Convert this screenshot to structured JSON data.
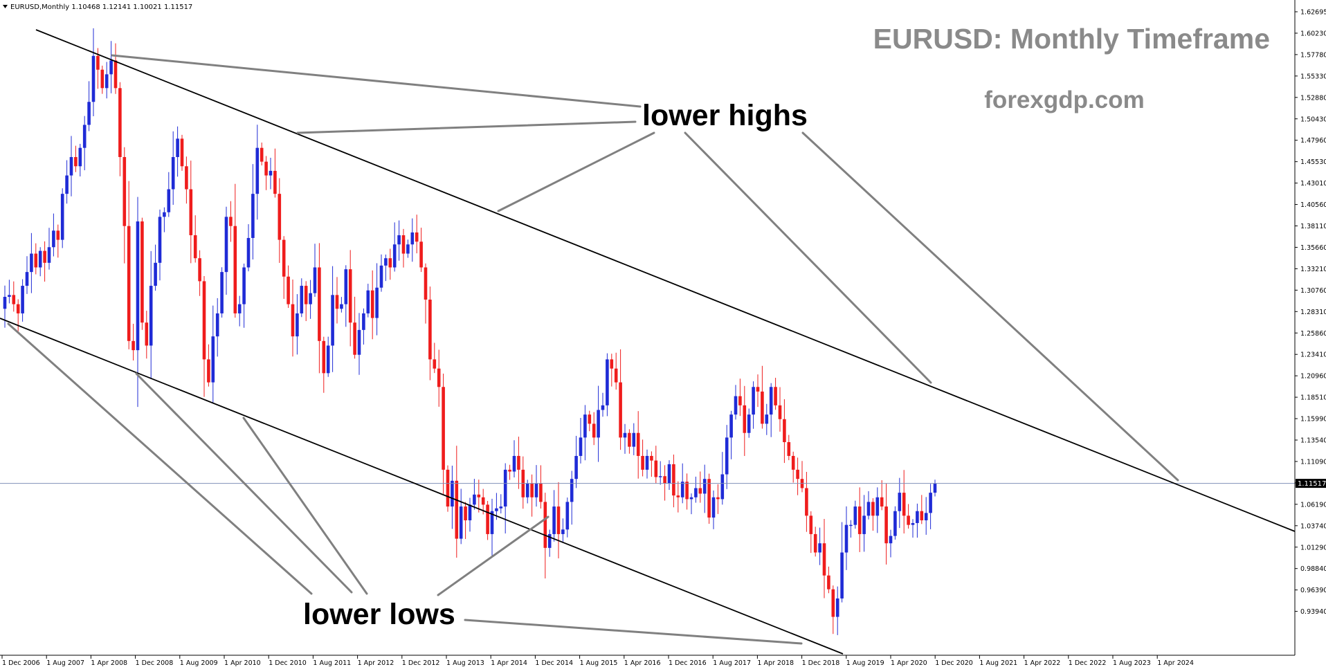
{
  "header": {
    "triangle_icon": "triangle-down-icon",
    "info": "EURUSD,Monthly  1.10468 1.12141 1.10021 1.11517"
  },
  "overlay": {
    "title": "EURUSD: Monthly Timeframe",
    "site": "forexgdp.com",
    "label_highs": "lower highs",
    "label_lows": "lower lows"
  },
  "colors": {
    "bull": "#1f2bd6",
    "bear": "#ef1c1c",
    "title_gray": "#8a8a8a",
    "annotation_line": "#808080",
    "trend_line": "#000000",
    "price_line": "#7f8fb8",
    "axis": "#000000"
  },
  "chart_data": {
    "type": "candlestick",
    "symbol": "EURUSD",
    "timeframe": "Monthly",
    "ylim": [
      0.9373,
      1.6295
    ],
    "y_ticks": [
      "1.62695",
      "1.60230",
      "1.57780",
      "1.55330",
      "1.52880",
      "1.50430",
      "1.47960",
      "1.45530",
      "1.43010",
      "1.40560",
      "1.38110",
      "1.35660",
      "1.33210",
      "1.30760",
      "1.28310",
      "1.25860",
      "1.23410",
      "1.20960",
      "1.18510",
      "1.15990",
      "1.13540",
      "1.11090",
      "1.08640",
      "1.06190",
      "1.03740",
      "1.01290",
      "0.98840",
      "0.96390",
      "0.93940"
    ],
    "x_ticks": [
      "1 Dec 2006",
      "1 Aug 2007",
      "1 Apr 2008",
      "1 Dec 2008",
      "1 Aug 2009",
      "1 Apr 2010",
      "1 Dec 2010",
      "1 Aug 2011",
      "1 Apr 2012",
      "1 Dec 2012",
      "1 Aug 2013",
      "1 Apr 2014",
      "1 Dec 2014",
      "1 Aug 2015",
      "1 Apr 2016",
      "1 Dec 2016",
      "1 Aug 2017",
      "1 Apr 2018",
      "1 Dec 2018",
      "1 Aug 2019",
      "1 Apr 2020",
      "1 Dec 2020",
      "1 Aug 2021",
      "1 Apr 2022",
      "1 Dec 2022",
      "1 Aug 2023",
      "1 Apr 2024"
    ],
    "current_price": "1.11517",
    "current_price_value": 1.11517,
    "candle_start": "2006-10",
    "closes": [
      1.318,
      1.32,
      1.31,
      1.3,
      1.33,
      1.345,
      1.365,
      1.35,
      1.368,
      1.355,
      1.372,
      1.39,
      1.38,
      1.43,
      1.45,
      1.47,
      1.46,
      1.48,
      1.505,
      1.53,
      1.58,
      1.565,
      1.545,
      1.56,
      1.575,
      1.545,
      1.47,
      1.395,
      1.27,
      1.26,
      1.4,
      1.29,
      1.265,
      1.33,
      1.355,
      1.405,
      1.41,
      1.435,
      1.47,
      1.49,
      1.46,
      1.435,
      1.385,
      1.36,
      1.335,
      1.25,
      1.225,
      1.275,
      1.3,
      1.345,
      1.405,
      1.395,
      1.3,
      1.31,
      1.35,
      1.382,
      1.43,
      1.48,
      1.465,
      1.45,
      1.455,
      1.43,
      1.38,
      1.34,
      1.31,
      1.275,
      1.3,
      1.33,
      1.31,
      1.322,
      1.35,
      1.27,
      1.235,
      1.265,
      1.32,
      1.305,
      1.31,
      1.348,
      1.29,
      1.255,
      1.282,
      1.3,
      1.325,
      1.295,
      1.328,
      1.352,
      1.36,
      1.35,
      1.375,
      1.385,
      1.365,
      1.375,
      1.388,
      1.378,
      1.35,
      1.315,
      1.25,
      1.24,
      1.22,
      1.13,
      1.09,
      1.118,
      1.055,
      1.09,
      1.075,
      1.092,
      1.103,
      1.1,
      1.092,
      1.06,
      1.085,
      1.088,
      1.09,
      1.13,
      1.128,
      1.145,
      1.13,
      1.1,
      1.115,
      1.1,
      1.115,
      1.095,
      1.045,
      1.06,
      1.09,
      1.06,
      1.065,
      1.095,
      1.12,
      1.145,
      1.165,
      1.19,
      1.18,
      1.165,
      1.195,
      1.2,
      1.25,
      1.24,
      1.225,
      1.165,
      1.17,
      1.155,
      1.17,
      1.145,
      1.13,
      1.145,
      1.14,
      1.122,
      1.123,
      1.115,
      1.136,
      1.102,
      1.1,
      1.117,
      1.098,
      1.1,
      1.11,
      1.104,
      1.12,
      1.078,
      1.1,
      1.098,
      1.125,
      1.165,
      1.19,
      1.21,
      1.2,
      1.17,
      1.19,
      1.22,
      1.215,
      1.18,
      1.19,
      1.22,
      1.2,
      1.185,
      1.16,
      1.145,
      1.13,
      1.12,
      1.11,
      1.08,
      1.06,
      1.04,
      1.05,
      1.015,
      1.0,
      0.97,
      0.99,
      1.04,
      1.07,
      1.07,
      1.09,
      1.06,
      1.08,
      1.095,
      1.08,
      1.1,
      1.09,
      1.05,
      1.058,
      1.085,
      1.105,
      1.08,
      1.07,
      1.072,
      1.085,
      1.075,
      1.083,
      1.105,
      1.115
    ],
    "annotations": [
      "lower highs",
      "lower lows"
    ],
    "grid": false,
    "legend": "none"
  }
}
